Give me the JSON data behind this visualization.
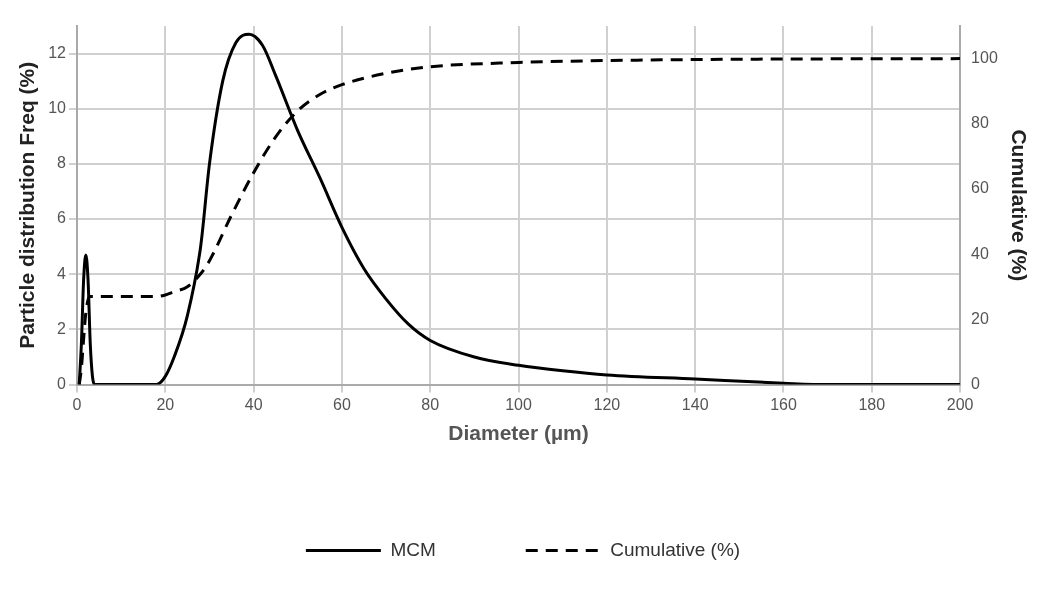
{
  "chart_data": {
    "type": "line",
    "xlabel": "Diameter (µm)",
    "ylabel": "Particle distribution Freq (%)",
    "y2label": "Cumulative (%)",
    "xlim": [
      0,
      200
    ],
    "xticks": [
      0,
      20,
      40,
      60,
      80,
      100,
      120,
      140,
      160,
      180,
      200
    ],
    "ylim": [
      0,
      13
    ],
    "yticks": [
      0,
      2,
      4,
      6,
      8,
      10,
      12
    ],
    "y2lim": [
      0,
      110
    ],
    "y2ticks": [
      0,
      20,
      40,
      60,
      80,
      100
    ],
    "grid": true,
    "legend": "bottom",
    "marker": "none",
    "series": [
      {
        "name": "MCM",
        "color": "#000000",
        "line_style": "solid",
        "x": [
          0.5,
          1,
          1.5,
          2,
          2.5,
          3,
          3.5,
          4,
          18,
          20,
          22,
          25,
          28,
          30,
          33,
          36,
          39,
          42,
          45,
          50,
          55,
          60,
          65,
          70,
          75,
          80,
          90,
          100,
          110,
          120,
          140,
          160,
          170,
          180,
          200
        ],
        "values": [
          0,
          1.5,
          3.8,
          4.7,
          3.8,
          1.5,
          0.3,
          0,
          0,
          0.3,
          1,
          2.5,
          5,
          8,
          11,
          12.4,
          12.7,
          12.3,
          11.2,
          9.2,
          7.5,
          5.7,
          4.2,
          3.1,
          2.2,
          1.6,
          1,
          0.7,
          0.5,
          0.35,
          0.2,
          0.05,
          0,
          0,
          0
        ]
      },
      {
        "name": "Cumulative (%)",
        "color": "#000000",
        "line_style": "dashed",
        "axis": "y2",
        "x": [
          0.5,
          1,
          1.5,
          2,
          2.5,
          3,
          10,
          18,
          20,
          22,
          25,
          28,
          30,
          35,
          40,
          45,
          50,
          55,
          60,
          70,
          80,
          100,
          120,
          150,
          200
        ],
        "values": [
          0,
          5,
          14,
          22,
          26,
          27,
          27,
          27,
          27.5,
          28.5,
          30,
          34,
          38,
          52,
          65,
          76,
          84,
          89,
          92,
          95.5,
          97.5,
          98.8,
          99.4,
          99.8,
          100
        ]
      }
    ]
  }
}
